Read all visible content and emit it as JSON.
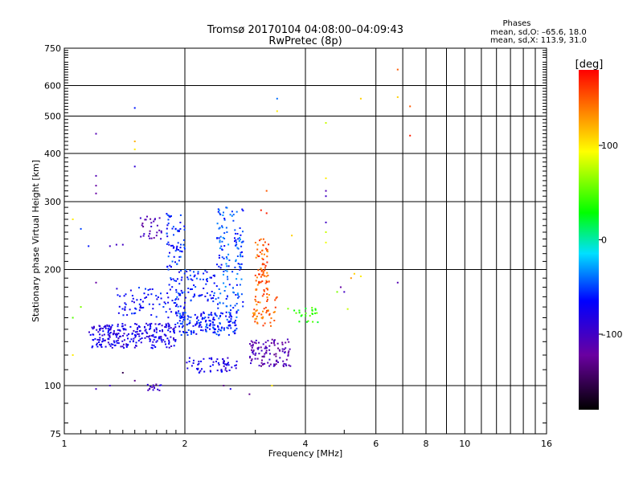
{
  "chart_data": {
    "type": "scatter",
    "title": "Tromsø 20170104 04:08:00–04:09:43",
    "subtitle": "RwPretec (8p)",
    "stats": {
      "heading": "Phases",
      "line1": "mean, sd,O: –65.6, 18.0",
      "line2": "mean, sd,X: 113.9, 31.0"
    },
    "xlabel": "Frequency [MHz]",
    "ylabel": "Stationary phase Virtual Height [km]",
    "x_scale": "log",
    "y_scale": "log",
    "xlim": [
      1,
      16
    ],
    "ylim": [
      75,
      750
    ],
    "x_ticks": [
      1,
      2,
      4,
      6,
      8,
      10,
      16
    ],
    "x_tick_labels": [
      "1",
      "2",
      "4",
      "6",
      "8",
      "10",
      "16"
    ],
    "y_ticks": [
      75,
      100,
      200,
      300,
      400,
      500,
      600,
      750
    ],
    "y_tick_labels": [
      "75",
      "100",
      "200",
      "300",
      "400",
      "500",
      "600",
      "750"
    ],
    "grid": true,
    "colorbar": {
      "label": "[deg]",
      "range": [
        -180,
        180
      ],
      "ticks": [
        100,
        0,
        -100
      ],
      "tick_labels": [
        "100",
        "0",
        "–100"
      ]
    },
    "clusters": [
      {
        "freq": [
          1.15,
          1.9
        ],
        "height": [
          125,
          145
        ],
        "phase": -80,
        "n": 260
      },
      {
        "freq": [
          1.9,
          2.7
        ],
        "height": [
          135,
          155
        ],
        "phase": -60,
        "n": 170
      },
      {
        "freq": [
          1.35,
          1.8
        ],
        "height": [
          150,
          180
        ],
        "phase": -70,
        "n": 60
      },
      {
        "freq": [
          1.8,
          2.0
        ],
        "height": [
          150,
          280
        ],
        "phase": -60,
        "n": 120
      },
      {
        "freq": [
          2.4,
          2.8
        ],
        "height": [
          150,
          290
        ],
        "phase": -50,
        "n": 150
      },
      {
        "freq": [
          2.0,
          2.4
        ],
        "height": [
          165,
          200
        ],
        "phase": -60,
        "n": 60
      },
      {
        "freq": [
          3.0,
          3.25
        ],
        "height": [
          170,
          240
        ],
        "phase": 150,
        "n": 80
      },
      {
        "freq": [
          2.95,
          3.4
        ],
        "height": [
          142,
          172
        ],
        "phase": 145,
        "n": 50
      },
      {
        "freq": [
          2.9,
          3.7
        ],
        "height": [
          112,
          132
        ],
        "phase": -110,
        "n": 110
      },
      {
        "freq": [
          2.0,
          2.7
        ],
        "height": [
          108,
          118
        ],
        "phase": -80,
        "n": 60
      },
      {
        "freq": [
          1.55,
          1.75
        ],
        "height": [
          240,
          275
        ],
        "phase": -110,
        "n": 30
      },
      {
        "freq": [
          3.6,
          4.3
        ],
        "height": [
          145,
          160
        ],
        "phase": 40,
        "n": 25
      },
      {
        "freq": [
          1.6,
          1.75
        ],
        "height": [
          97,
          101
        ],
        "phase": -100,
        "n": 15
      }
    ],
    "scattered_points": [
      {
        "f": 1.2,
        "h": 450,
        "p": -110
      },
      {
        "f": 1.2,
        "h": 350,
        "p": -110
      },
      {
        "f": 1.2,
        "h": 330,
        "p": -120
      },
      {
        "f": 1.2,
        "h": 315,
        "p": -120
      },
      {
        "f": 1.5,
        "h": 525,
        "p": -60
      },
      {
        "f": 1.5,
        "h": 430,
        "p": 120
      },
      {
        "f": 1.5,
        "h": 410,
        "p": 100
      },
      {
        "f": 1.5,
        "h": 370,
        "p": -90
      },
      {
        "f": 3.4,
        "h": 555,
        "p": -40
      },
      {
        "f": 3.4,
        "h": 515,
        "p": 100
      },
      {
        "f": 4.5,
        "h": 480,
        "p": 80
      },
      {
        "f": 4.5,
        "h": 345,
        "p": 100
      },
      {
        "f": 4.5,
        "h": 320,
        "p": -110
      },
      {
        "f": 4.5,
        "h": 310,
        "p": -100
      },
      {
        "f": 4.5,
        "h": 265,
        "p": -100
      },
      {
        "f": 4.5,
        "h": 250,
        "p": 80
      },
      {
        "f": 4.5,
        "h": 235,
        "p": 90
      },
      {
        "f": 5.5,
        "h": 555,
        "p": 110
      },
      {
        "f": 6.8,
        "h": 660,
        "p": 150
      },
      {
        "f": 6.8,
        "h": 560,
        "p": 110
      },
      {
        "f": 7.3,
        "h": 530,
        "p": 150
      },
      {
        "f": 7.3,
        "h": 445,
        "p": 170
      },
      {
        "f": 6.8,
        "h": 185,
        "p": -110
      },
      {
        "f": 3.2,
        "h": 320,
        "p": 150
      },
      {
        "f": 3.1,
        "h": 285,
        "p": 170
      },
      {
        "f": 3.2,
        "h": 280,
        "p": 170
      },
      {
        "f": 3.7,
        "h": 245,
        "p": 110
      },
      {
        "f": 1.15,
        "h": 230,
        "p": -60
      },
      {
        "f": 1.3,
        "h": 230,
        "p": -100
      },
      {
        "f": 1.35,
        "h": 232,
        "p": -100
      },
      {
        "f": 1.4,
        "h": 232,
        "p": -100
      },
      {
        "f": 1.1,
        "h": 255,
        "p": -50
      },
      {
        "f": 1.05,
        "h": 270,
        "p": 100
      },
      {
        "f": 1.1,
        "h": 160,
        "p": 60
      },
      {
        "f": 1.05,
        "h": 150,
        "p": 50
      },
      {
        "f": 1.05,
        "h": 120,
        "p": 100
      },
      {
        "f": 1.2,
        "h": 185,
        "p": -120
      },
      {
        "f": 1.2,
        "h": 98,
        "p": -100
      },
      {
        "f": 1.3,
        "h": 100,
        "p": -100
      },
      {
        "f": 1.4,
        "h": 108,
        "p": -150
      },
      {
        "f": 1.5,
        "h": 103,
        "p": -130
      },
      {
        "f": 2.5,
        "h": 100,
        "p": -130
      },
      {
        "f": 2.6,
        "h": 98,
        "p": -80
      },
      {
        "f": 2.9,
        "h": 95,
        "p": -130
      },
      {
        "f": 3.3,
        "h": 100,
        "p": 100
      },
      {
        "f": 4.8,
        "h": 175,
        "p": 60
      },
      {
        "f": 4.9,
        "h": 180,
        "p": -120
      },
      {
        "f": 5.0,
        "h": 175,
        "p": -100
      },
      {
        "f": 5.2,
        "h": 190,
        "p": 130
      },
      {
        "f": 5.3,
        "h": 195,
        "p": 110
      },
      {
        "f": 5.5,
        "h": 192,
        "p": 100
      },
      {
        "f": 5.1,
        "h": 158,
        "p": 80
      }
    ]
  }
}
